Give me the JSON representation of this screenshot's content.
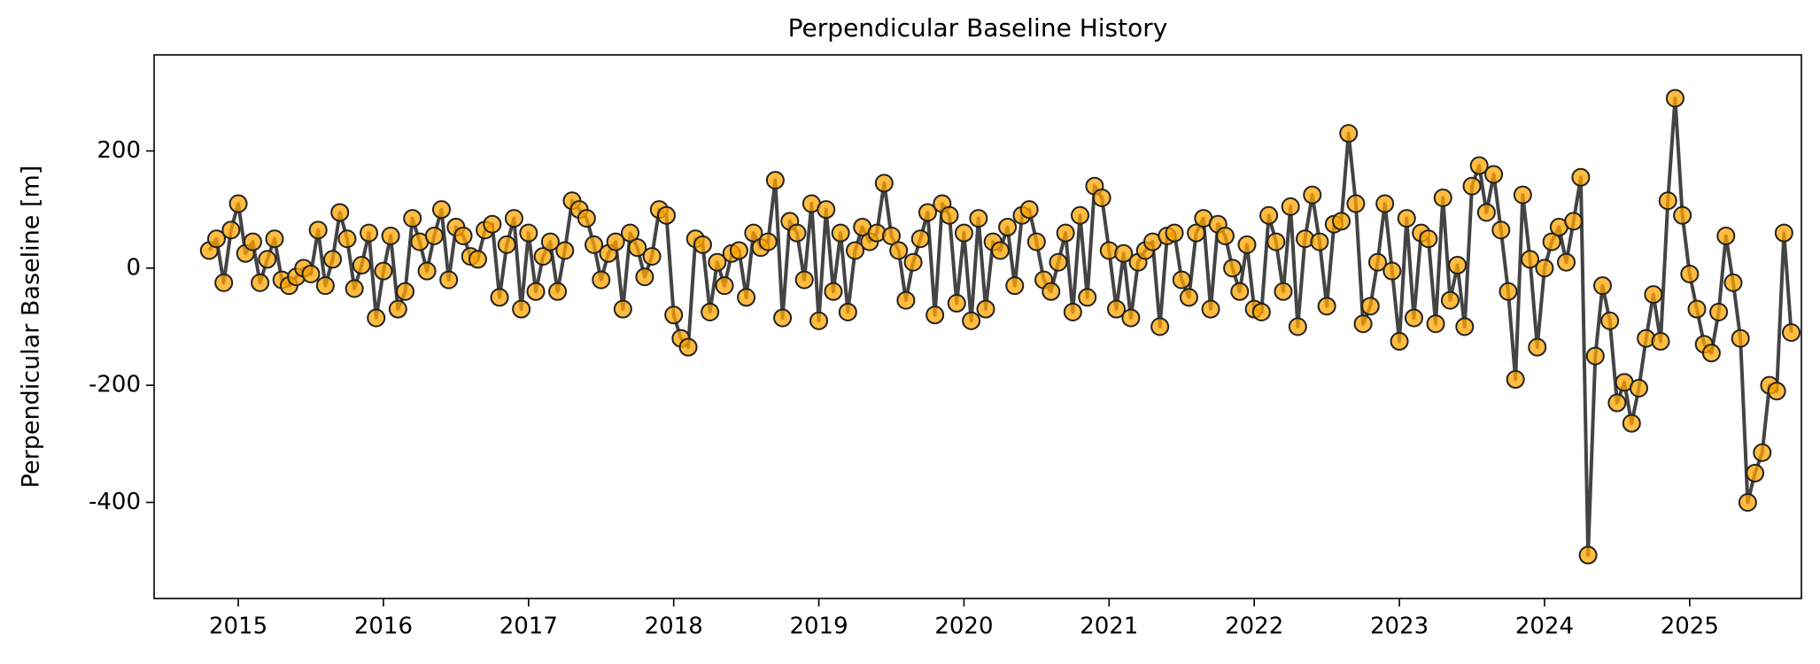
{
  "chart_data": {
    "type": "line",
    "title": "Perpendicular Baseline History",
    "y_label": "Perpendicular Baseline [m]",
    "xlim": [
      2014.42,
      2025.77
    ],
    "ylim": [
      -564,
      364
    ],
    "xticks": [
      2015,
      2016,
      2017,
      2018,
      2019,
      2020,
      2021,
      2022,
      2023,
      2024,
      2025
    ],
    "yticks": [
      -400,
      -200,
      0,
      200
    ],
    "line_color": "#444444",
    "marker_color": "#ffa500",
    "x": [
      2014.8,
      2014.85,
      2014.9,
      2014.95,
      2015,
      2015.05,
      2015.1,
      2015.15,
      2015.2,
      2015.25,
      2015.3,
      2015.35,
      2015.4,
      2015.45,
      2015.5,
      2015.55,
      2015.6,
      2015.65,
      2015.7,
      2015.75,
      2015.8,
      2015.85,
      2015.9,
      2015.95,
      2016,
      2016.05,
      2016.1,
      2016.15,
      2016.2,
      2016.25,
      2016.3,
      2016.35,
      2016.4,
      2016.45,
      2016.5,
      2016.55,
      2016.6,
      2016.65,
      2016.7,
      2016.75,
      2016.8,
      2016.85,
      2016.9,
      2016.95,
      2017,
      2017.05,
      2017.1,
      2017.15,
      2017.2,
      2017.25,
      2017.3,
      2017.35,
      2017.4,
      2017.45,
      2017.5,
      2017.55,
      2017.6,
      2017.65,
      2017.7,
      2017.75,
      2017.8,
      2017.85,
      2017.9,
      2017.95,
      2018,
      2018.05,
      2018.1,
      2018.15,
      2018.2,
      2018.25,
      2018.3,
      2018.35,
      2018.4,
      2018.45,
      2018.5,
      2018.55,
      2018.6,
      2018.65,
      2018.7,
      2018.75,
      2018.8,
      2018.85,
      2018.9,
      2018.95,
      2019,
      2019.05,
      2019.1,
      2019.15,
      2019.2,
      2019.25,
      2019.3,
      2019.35,
      2019.4,
      2019.45,
      2019.5,
      2019.55,
      2019.6,
      2019.65,
      2019.7,
      2019.75,
      2019.8,
      2019.85,
      2019.9,
      2019.95,
      2020,
      2020.05,
      2020.1,
      2020.15,
      2020.2,
      2020.25,
      2020.3,
      2020.35,
      2020.4,
      2020.45,
      2020.5,
      2020.55,
      2020.6,
      2020.65,
      2020.7,
      2020.75,
      2020.8,
      2020.85,
      2020.9,
      2020.95,
      2021,
      2021.05,
      2021.1,
      2021.15,
      2021.2,
      2021.25,
      2021.3,
      2021.35,
      2021.4,
      2021.45,
      2021.5,
      2021.55,
      2021.6,
      2021.65,
      2021.7,
      2021.75,
      2021.8,
      2021.85,
      2021.9,
      2021.95,
      2022,
      2022.05,
      2022.1,
      2022.15,
      2022.2,
      2022.25,
      2022.3,
      2022.35,
      2022.4,
      2022.45,
      2022.5,
      2022.55,
      2022.6,
      2022.65,
      2022.7,
      2022.75,
      2022.8,
      2022.85,
      2022.9,
      2022.95,
      2023,
      2023.05,
      2023.1,
      2023.15,
      2023.2,
      2023.25,
      2023.3,
      2023.35,
      2023.4,
      2023.45,
      2023.5,
      2023.55,
      2023.6,
      2023.65,
      2023.7,
      2023.75,
      2023.8,
      2023.85,
      2023.9,
      2023.95,
      2024,
      2024.05,
      2024.1,
      2024.15,
      2024.2,
      2024.25,
      2024.3,
      2024.35,
      2024.4,
      2024.45,
      2024.5,
      2024.55,
      2024.6,
      2024.65,
      2024.7,
      2024.75,
      2024.8,
      2024.85,
      2024.9,
      2024.95,
      2025,
      2025.05,
      2025.1,
      2025.15,
      2025.2,
      2025.25,
      2025.3,
      2025.35,
      2025.4,
      2025.45,
      2025.5,
      2025.55,
      2025.6,
      2025.65,
      2025.7
    ],
    "values": [
      30,
      50,
      -25,
      65,
      110,
      25,
      45,
      -25,
      15,
      50,
      -20,
      -30,
      -15,
      0,
      -10,
      65,
      -30,
      15,
      95,
      50,
      -35,
      5,
      60,
      -85,
      -5,
      55,
      -70,
      -40,
      85,
      45,
      -5,
      55,
      100,
      -20,
      70,
      55,
      20,
      15,
      65,
      75,
      -50,
      40,
      85,
      -70,
      60,
      -40,
      20,
      45,
      -40,
      30,
      115,
      100,
      85,
      40,
      -20,
      25,
      45,
      -70,
      60,
      35,
      -15,
      20,
      100,
      90,
      -80,
      -120,
      -135,
      50,
      40,
      -75,
      10,
      -30,
      25,
      30,
      -50,
      60,
      35,
      45,
      150,
      -85,
      80,
      60,
      -20,
      110,
      -90,
      100,
      -40,
      60,
      -75,
      30,
      70,
      45,
      60,
      145,
      55,
      30,
      -55,
      10,
      50,
      95,
      -80,
      110,
      90,
      -60,
      60,
      -90,
      85,
      -70,
      45,
      30,
      70,
      -30,
      90,
      100,
      45,
      -20,
      -40,
      10,
      60,
      -75,
      90,
      -50,
      140,
      120,
      30,
      -70,
      25,
      -85,
      10,
      30,
      45,
      -100,
      55,
      60,
      -20,
      -50,
      60,
      85,
      -70,
      75,
      55,
      0,
      -40,
      40,
      -70,
      -75,
      90,
      45,
      -40,
      105,
      -100,
      50,
      125,
      45,
      -65,
      75,
      80,
      230,
      110,
      -95,
      -65,
      10,
      110,
      -5,
      -125,
      85,
      -85,
      60,
      50,
      -95,
      120,
      -55,
      5,
      -100,
      140,
      175,
      95,
      160,
      65,
      -40,
      -190,
      125,
      15,
      -135,
      0,
      45,
      70,
      10,
      80,
      155,
      -490,
      -150,
      -30,
      -90,
      -230,
      -195,
      -265,
      -205,
      -120,
      -45,
      -125,
      115,
      290,
      90,
      -10,
      -70,
      -130,
      -145,
      -75,
      55,
      -25,
      -120,
      -400,
      -350,
      -315,
      -200,
      -210,
      60,
      -110
    ]
  }
}
